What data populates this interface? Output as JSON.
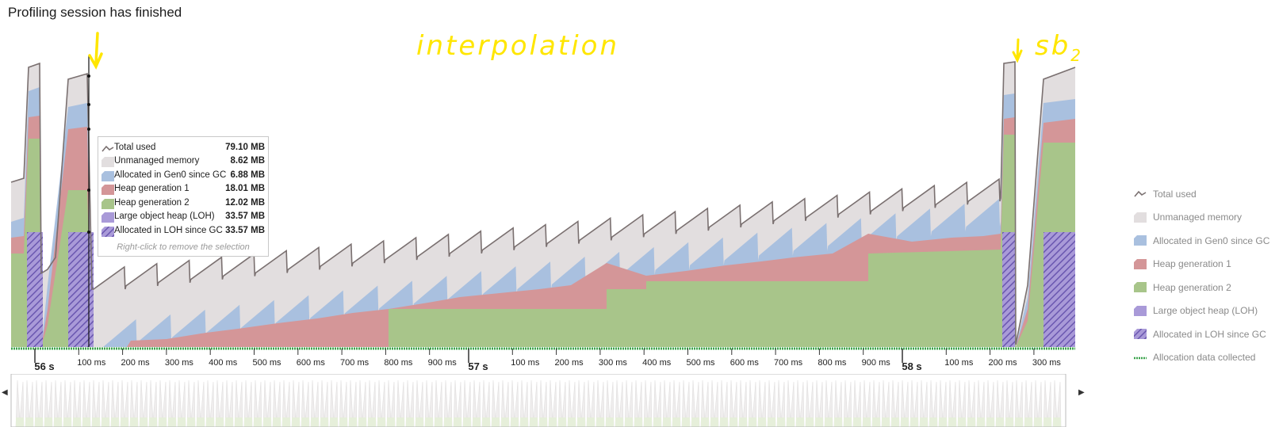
{
  "header": {
    "title": "Profiling session has finished"
  },
  "annotations": {
    "main": "interpolation",
    "side": "sb",
    "side_sub": "2"
  },
  "colors": {
    "total_used": "#7a7070",
    "unmanaged": "#e2dedf",
    "gen0": "#a9c0df",
    "gen1": "#d49698",
    "gen2": "#a8c58a",
    "loh": "#a99ad8",
    "loh_since_gc": "#7e6cc0",
    "alloc_collected": "#3aa34a",
    "annotation": "#ffe600"
  },
  "legend": [
    {
      "key": "total_used",
      "label": "Total used",
      "icon": "line-icon"
    },
    {
      "key": "unmanaged",
      "label": "Unmanaged memory",
      "icon": "area-icon"
    },
    {
      "key": "gen0",
      "label": "Allocated in Gen0 since GC",
      "icon": "area-icon"
    },
    {
      "key": "gen1",
      "label": "Heap generation 1",
      "icon": "area-icon"
    },
    {
      "key": "gen2",
      "label": "Heap generation 2",
      "icon": "area-icon"
    },
    {
      "key": "loh",
      "label": "Large object heap (LOH)",
      "icon": "area-icon"
    },
    {
      "key": "loh_since_gc",
      "label": "Allocated in LOH since GC",
      "icon": "hatched-area-icon"
    },
    {
      "key": "alloc_collected",
      "label": "Allocation data collected",
      "icon": "dashed-line-icon"
    }
  ],
  "tooltip": {
    "rows": [
      {
        "key": "total_used",
        "label": "Total used",
        "value": "79.10 MB"
      },
      {
        "key": "unmanaged",
        "label": "Unmanaged memory",
        "value": "8.62 MB"
      },
      {
        "key": "gen0",
        "label": "Allocated in Gen0 since GC",
        "value": "6.88 MB"
      },
      {
        "key": "gen1",
        "label": "Heap generation 1",
        "value": "18.01 MB"
      },
      {
        "key": "gen2",
        "label": "Heap generation 2",
        "value": "12.02 MB"
      },
      {
        "key": "loh",
        "label": "Large object heap (LOH)",
        "value": "33.57 MB"
      },
      {
        "key": "loh_since_gc",
        "label": "Allocated in LOH since GC",
        "value": "33.57 MB"
      }
    ],
    "hint": "Right-click to remove the selection"
  },
  "timeline": {
    "labels": [
      {
        "text": "56 s",
        "major": true
      },
      {
        "text": "100 ms",
        "major": false
      },
      {
        "text": "200 ms",
        "major": false
      },
      {
        "text": "300 ms",
        "major": false
      },
      {
        "text": "400 ms",
        "major": false
      },
      {
        "text": "500 ms",
        "major": false
      },
      {
        "text": "600 ms",
        "major": false
      },
      {
        "text": "700 ms",
        "major": false
      },
      {
        "text": "800 ms",
        "major": false
      },
      {
        "text": "900 ms",
        "major": false
      },
      {
        "text": "57 s",
        "major": true
      },
      {
        "text": "100 ms",
        "major": false
      },
      {
        "text": "200 ms",
        "major": false
      },
      {
        "text": "300 ms",
        "major": false
      },
      {
        "text": "400 ms",
        "major": false
      },
      {
        "text": "500 ms",
        "major": false
      },
      {
        "text": "600 ms",
        "major": false
      },
      {
        "text": "700 ms",
        "major": false
      },
      {
        "text": "800 ms",
        "major": false
      },
      {
        "text": "900 ms",
        "major": false
      },
      {
        "text": "58 s",
        "major": true
      },
      {
        "text": "100 ms",
        "major": false
      },
      {
        "text": "200 ms",
        "major": false
      },
      {
        "text": "300 ms",
        "major": false
      }
    ]
  },
  "navigation": {
    "left_arrow": "◀",
    "right_arrow": "▶"
  }
}
